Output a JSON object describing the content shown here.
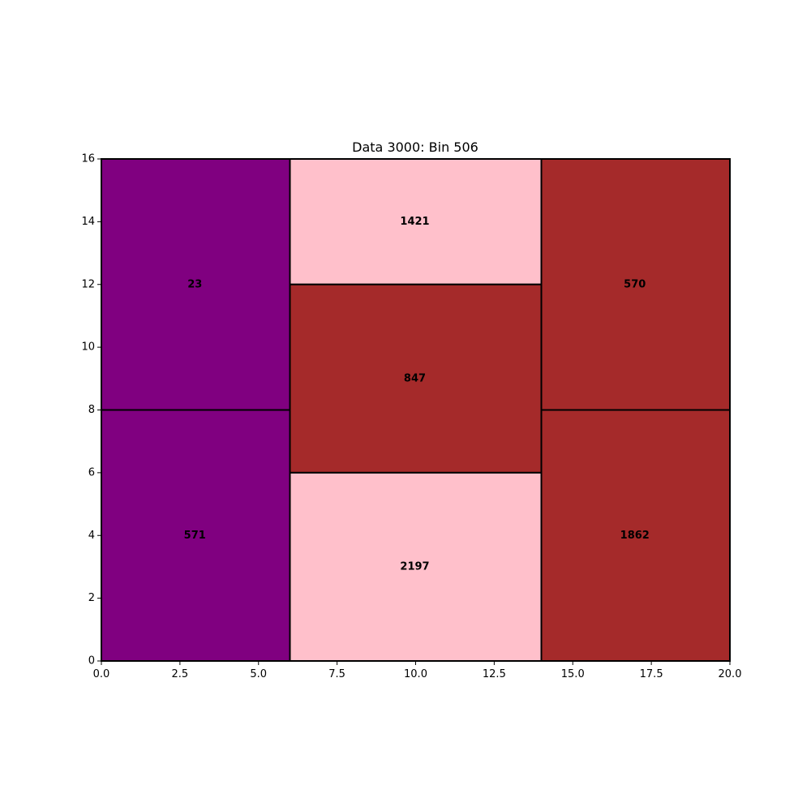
{
  "chart_data": {
    "type": "treemap",
    "title": "Data 3000: Bin 506",
    "xlim": [
      0,
      20
    ],
    "ylim": [
      0,
      16
    ],
    "x_ticks": [
      "0.0",
      "2.5",
      "5.0",
      "7.5",
      "10.0",
      "12.5",
      "15.0",
      "17.5",
      "20.0"
    ],
    "y_ticks": [
      "0",
      "2",
      "4",
      "6",
      "8",
      "10",
      "12",
      "14",
      "16"
    ],
    "rects": [
      {
        "label": "23",
        "x0": 0,
        "x1": 6,
        "y0": 8,
        "y1": 16,
        "color": "#800080"
      },
      {
        "label": "571",
        "x0": 0,
        "x1": 6,
        "y0": 0,
        "y1": 8,
        "color": "#800080"
      },
      {
        "label": "1421",
        "x0": 6,
        "x1": 14,
        "y0": 12,
        "y1": 16,
        "color": "#ffc0cb"
      },
      {
        "label": "847",
        "x0": 6,
        "x1": 14,
        "y0": 6,
        "y1": 12,
        "color": "#a52a2a"
      },
      {
        "label": "2197",
        "x0": 6,
        "x1": 14,
        "y0": 0,
        "y1": 6,
        "color": "#ffc0cb"
      },
      {
        "label": "570",
        "x0": 14,
        "x1": 20,
        "y0": 8,
        "y1": 16,
        "color": "#a52a2a"
      },
      {
        "label": "1862",
        "x0": 14,
        "x1": 20,
        "y0": 0,
        "y1": 8,
        "color": "#a52a2a"
      }
    ],
    "grid": false,
    "legend": "none"
  }
}
